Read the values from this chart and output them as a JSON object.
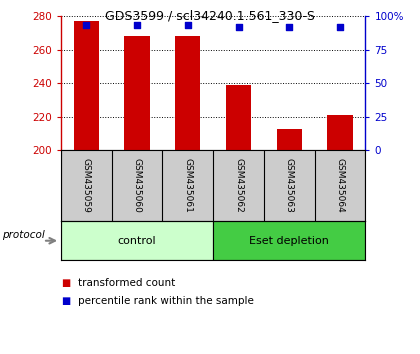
{
  "title": "GDS3599 / scl34240.1.561_330-S",
  "samples": [
    "GSM435059",
    "GSM435060",
    "GSM435061",
    "GSM435062",
    "GSM435063",
    "GSM435064"
  ],
  "red_values": [
    277,
    268,
    268,
    239,
    213,
    221
  ],
  "blue_values": [
    93,
    93,
    93,
    92,
    92,
    92
  ],
  "ylim_left": [
    200,
    280
  ],
  "ylim_right": [
    0,
    100
  ],
  "yticks_left": [
    200,
    220,
    240,
    260,
    280
  ],
  "yticks_right": [
    0,
    25,
    50,
    75,
    100
  ],
  "yticklabels_right": [
    "0",
    "25",
    "50",
    "75",
    "100%"
  ],
  "groups": [
    {
      "label": "control",
      "start": 0,
      "end": 3,
      "color": "#ccffcc"
    },
    {
      "label": "Eset depletion",
      "start": 3,
      "end": 6,
      "color": "#44cc44"
    }
  ],
  "left_axis_color": "#cc0000",
  "right_axis_color": "#0000cc",
  "bar_color": "#cc0000",
  "dot_color": "#0000cc",
  "background_color": "#ffffff",
  "plot_bg": "#ffffff",
  "xlabel_area_color": "#cccccc",
  "legend_red_label": "transformed count",
  "legend_blue_label": "percentile rank within the sample",
  "protocol_label": "protocol",
  "bar_width": 0.5
}
